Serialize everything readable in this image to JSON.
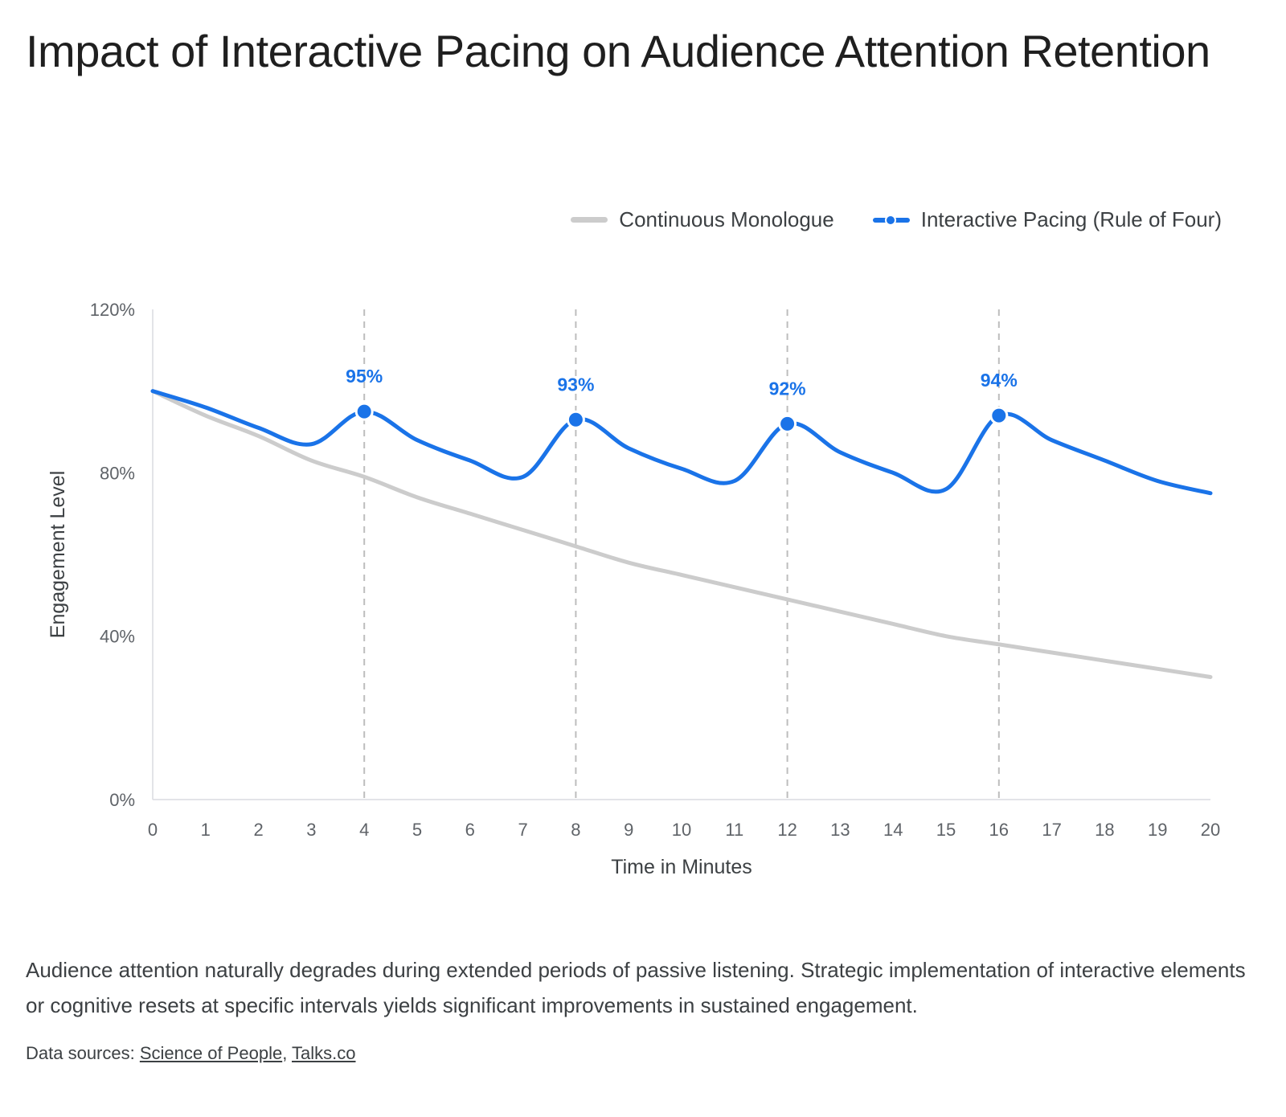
{
  "title": "Impact of Interactive Pacing on Audience Attention Retention",
  "description": "Audience attention naturally degrades during extended periods of passive listening. Strategic implementation of interactive elements or cognitive resets at specific intervals yields significant improvements in sustained engagement.",
  "sources": {
    "label": "Data sources: ",
    "separator": ", ",
    "links": [
      "Science of People",
      "Talks.co"
    ]
  },
  "legend": {
    "monologue": "Continuous Monologue",
    "interactive": "Interactive Pacing (Rule of Four)"
  },
  "chart_data": {
    "type": "line",
    "title": "Impact of Interactive Pacing on Audience Attention Retention",
    "xlabel": "Time in Minutes",
    "ylabel": "Engagement Level",
    "x": [
      0,
      1,
      2,
      3,
      4,
      5,
      6,
      7,
      8,
      9,
      10,
      11,
      12,
      13,
      14,
      15,
      16,
      17,
      18,
      19,
      20
    ],
    "xlim": [
      0,
      20
    ],
    "ylim": [
      0,
      120
    ],
    "yticks": [
      0,
      40,
      80,
      120
    ],
    "ytick_suffix": "%",
    "grid": false,
    "reference_lines_x": [
      4,
      8,
      12,
      16
    ],
    "legend_position": "top-right",
    "series": [
      {
        "name": "Continuous Monologue",
        "color": "#cccccc",
        "values": [
          100,
          94,
          89,
          83,
          79,
          74,
          70,
          66,
          62,
          58,
          55,
          52,
          49,
          46,
          43,
          40,
          38,
          36,
          34,
          32,
          30
        ]
      },
      {
        "name": "Interactive Pacing (Rule of Four)",
        "color": "#1a73e8",
        "values": [
          100,
          96,
          91,
          87,
          95,
          88,
          83,
          79,
          93,
          86,
          81,
          78,
          92,
          85,
          80,
          76,
          94,
          88,
          83,
          78,
          75
        ]
      }
    ],
    "annotations": [
      {
        "x": 4,
        "y": 95,
        "label": "95%"
      },
      {
        "x": 8,
        "y": 93,
        "label": "93%"
      },
      {
        "x": 12,
        "y": 92,
        "label": "92%"
      },
      {
        "x": 16,
        "y": 94,
        "label": "94%"
      }
    ]
  }
}
